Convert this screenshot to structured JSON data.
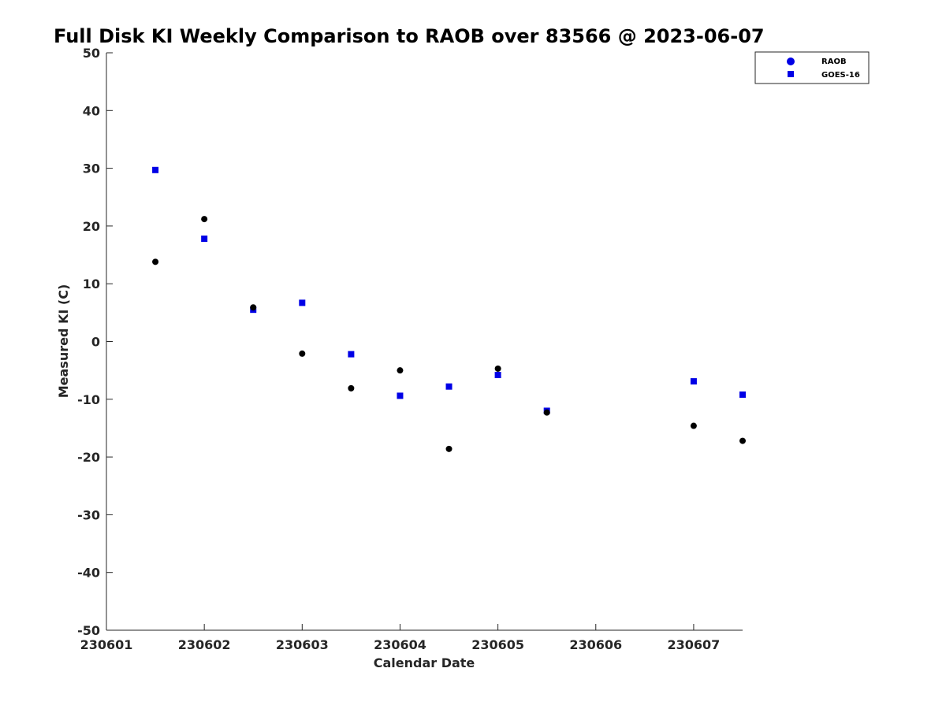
{
  "chart_data": {
    "type": "scatter",
    "title": "Full Disk KI Weekly Comparison to RAOB over 83566 @ 2023-06-07",
    "xlabel": "Calendar Date",
    "ylabel": "Measured KI (C)",
    "xlim": [
      0,
      6.5
    ],
    "ylim": [
      -50,
      50
    ],
    "x_ticks": [
      {
        "value": 0,
        "label": "230601"
      },
      {
        "value": 1,
        "label": "230602"
      },
      {
        "value": 2,
        "label": "230603"
      },
      {
        "value": 3,
        "label": "230604"
      },
      {
        "value": 4,
        "label": "230605"
      },
      {
        "value": 5,
        "label": "230606"
      },
      {
        "value": 6,
        "label": "230607"
      }
    ],
    "y_ticks": [
      50,
      40,
      30,
      20,
      10,
      0,
      -10,
      -20,
      -30,
      -40,
      -50
    ],
    "grid": false,
    "legend_position": "top-right",
    "series": [
      {
        "name": "RAOB",
        "marker": "circle",
        "color": "#000000",
        "legend_color": "#0000e6",
        "x": [
          0.5,
          1.0,
          1.5,
          2.0,
          2.5,
          3.0,
          3.5,
          4.0,
          4.5,
          6.0,
          6.5
        ],
        "y": [
          13.8,
          21.2,
          5.9,
          -2.1,
          -8.1,
          -5.0,
          -18.6,
          -4.7,
          -12.3,
          -14.6,
          -17.2
        ]
      },
      {
        "name": "GOES-16",
        "marker": "square",
        "color": "#0000e6",
        "legend_color": "#0000e6",
        "x": [
          0.5,
          1.0,
          1.5,
          2.0,
          2.5,
          3.0,
          3.5,
          4.0,
          4.5,
          6.0,
          6.5
        ],
        "y": [
          29.7,
          17.8,
          5.5,
          6.7,
          -2.2,
          -9.4,
          -7.8,
          -5.8,
          -12.0,
          -6.9,
          -9.2
        ]
      }
    ]
  }
}
